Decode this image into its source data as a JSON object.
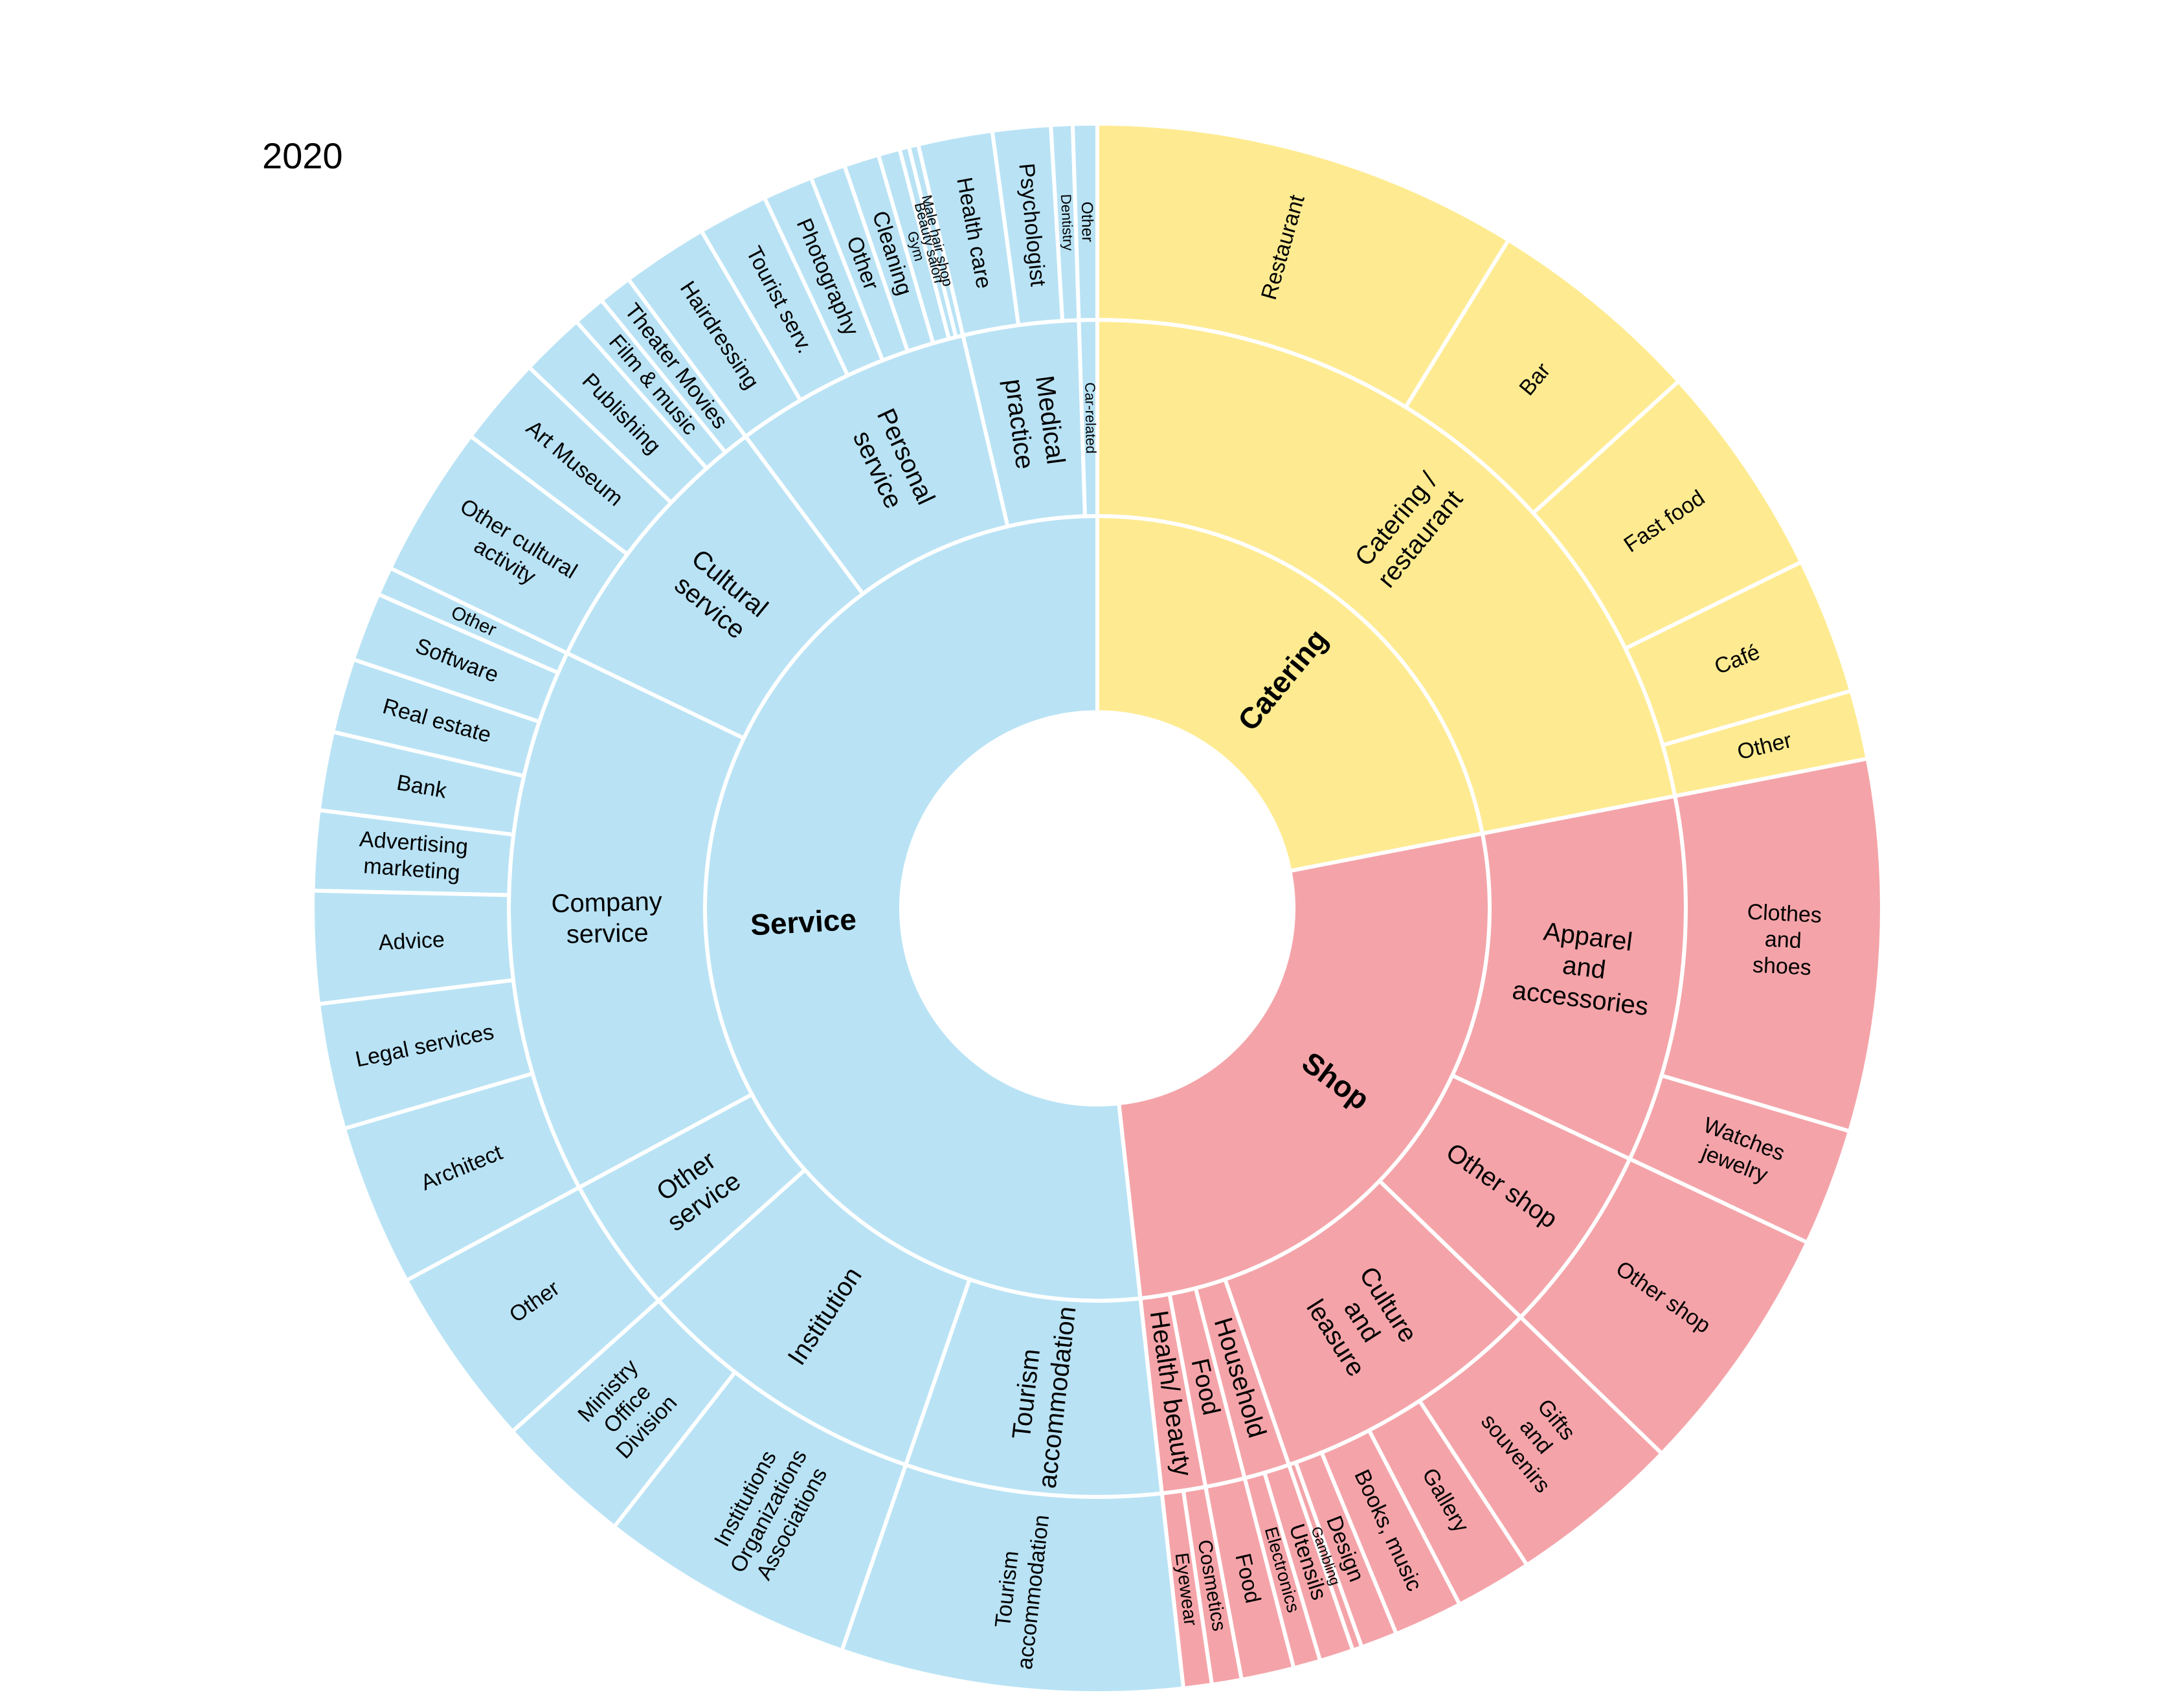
{
  "chart_data": {
    "type": "sunburst",
    "title": "2020",
    "nodes": [
      {
        "name": "Catering",
        "value": 79,
        "color": "#feeb91",
        "children": [
          {
            "name": "Catering /\nrestaurant",
            "value": 79,
            "children": [
              {
                "name": "Restaurant",
                "value": 31.6
              },
              {
                "name": "Bar",
                "value": 16.2
              },
              {
                "name": "Fast food",
                "value": 16
              },
              {
                "name": "Café",
                "value": 10.1
              },
              {
                "name": "Other",
                "value": 5.1
              }
            ]
          }
        ]
      },
      {
        "name": "Shop",
        "value": 94.7,
        "color": "#f4a4a9",
        "children": [
          {
            "name": "Apparel\nand\naccessories",
            "value": 36.2,
            "children": [
              {
                "name": "Clothes\nand\nshoes",
                "value": 27.5
              },
              {
                "name": "Watches\njewelry",
                "value": 8.7
              }
            ]
          },
          {
            "name": "Other shop",
            "value": 18.8,
            "children": [
              {
                "name": "Other shop",
                "value": 18.8
              }
            ]
          },
          {
            "name": "Culture\nand\nleasure",
            "value": 27,
            "children": [
              {
                "name": "Gifts\nand\nsouvenirs",
                "value": 12.8
              },
              {
                "name": "Gallery",
                "value": 5.7
              },
              {
                "name": "Books, music",
                "value": 5.1
              },
              {
                "name": "Design",
                "value": 2.7
              },
              {
                "name": "Gambling",
                "value": 0.7
              }
            ]
          },
          {
            "name": "Household",
            "value": 4.5,
            "children": [
              {
                "name": "Utensils",
                "value": 2.5
              },
              {
                "name": "Electronics",
                "value": 2
              }
            ]
          },
          {
            "name": "Food",
            "value": 3.9,
            "children": [
              {
                "name": "Food",
                "value": 3.9
              }
            ]
          },
          {
            "name": "Health/ beauty",
            "value": 4.3,
            "children": [
              {
                "name": "Cosmetics",
                "value": 2.2
              },
              {
                "name": "Eyewear",
                "value": 2.1
              }
            ]
          }
        ]
      },
      {
        "name": "Service",
        "value": 186.3,
        "color": "#b9e3f5",
        "children": [
          {
            "name": "Tourism\naccommodation",
            "value": 25.3,
            "children": [
              {
                "name": "Tourism\naccommodation",
                "value": 25.3
              }
            ]
          },
          {
            "name": "Institution",
            "value": 29.2,
            "children": [
              {
                "name": "Institutions\nOrganizations\nAssociations",
                "value": 19
              },
              {
                "name": "Ministry\nOffice\nDivision",
                "value": 10.2
              }
            ]
          },
          {
            "name": "Other\nservice",
            "value": 13.5,
            "children": [
              {
                "name": "Other",
                "value": 13.5
              }
            ]
          },
          {
            "name": "Company\nservice",
            "value": 54,
            "children": [
              {
                "name": "Architect",
                "value": 12
              },
              {
                "name": "Legal services",
                "value": 9.3
              },
              {
                "name": "Advice",
                "value": 8.3
              },
              {
                "name": "Advertising\nmarketing",
                "value": 5.9
              },
              {
                "name": "Bank",
                "value": 5.8
              },
              {
                "name": "Real estate",
                "value": 5.5
              },
              {
                "name": "Software",
                "value": 5.1
              },
              {
                "name": "Other",
                "value": 2.1
              }
            ]
          },
          {
            "name": "Cultural\nservice",
            "value": 27.6,
            "children": [
              {
                "name": "Other cultural\nactivity",
                "value": 11.3
              },
              {
                "name": "Art Museum",
                "value": 6.6
              },
              {
                "name": "Publishing",
                "value": 4.8
              },
              {
                "name": "Film & music",
                "value": 2.4
              },
              {
                "name": "Theater Movies",
                "value": 2.5
              }
            ]
          },
          {
            "name": "Personal\nservice",
            "value": 23.5,
            "children": [
              {
                "name": "Hairdressing",
                "value": 6.4
              },
              {
                "name": "Tourist serv.",
                "value": 5.2
              },
              {
                "name": "Photography",
                "value": 3.7
              },
              {
                "name": "Other",
                "value": 2.6
              },
              {
                "name": "Cleaning",
                "value": 2.6
              },
              {
                "name": "Gym",
                "value": 1.6
              },
              {
                "name": "Beauty salon",
                "value": 0.7
              },
              {
                "name": "Male hair shop",
                "value": 0.7
              }
            ]
          },
          {
            "name": "Medical\npractice",
            "value": 11.4,
            "children": [
              {
                "name": "Health care",
                "value": 5.5
              },
              {
                "name": "Psychologist",
                "value": 4.3
              },
              {
                "name": "Dentistry",
                "value": 1.6
              }
            ]
          },
          {
            "name": "Car-related",
            "value": 1.8,
            "children": [
              {
                "name": "Other",
                "value": 1.8
              }
            ]
          }
        ]
      }
    ]
  }
}
